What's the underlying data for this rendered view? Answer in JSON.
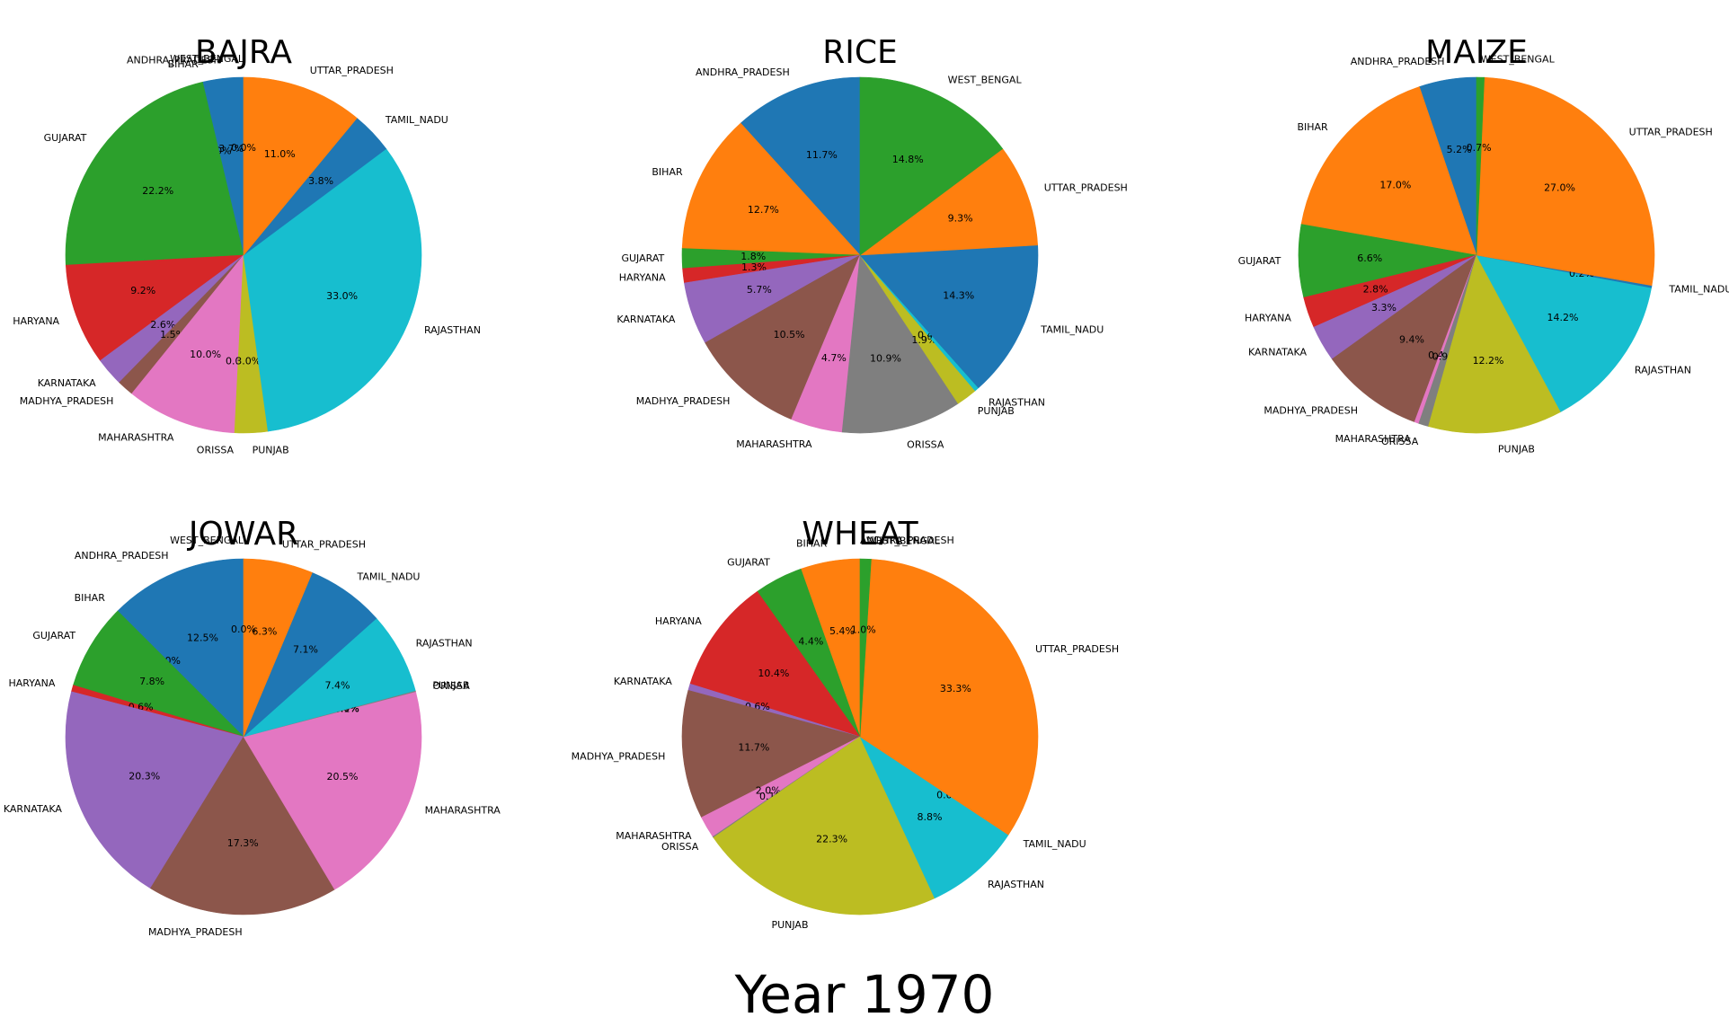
{
  "figure_title": "Year 1970",
  "colors": [
    "#1f77b4",
    "#ff7f0e",
    "#2ca02c",
    "#d62728",
    "#9467bd",
    "#8c564b",
    "#e377c2",
    "#7f7f7f",
    "#bcbd22",
    "#17becf"
  ],
  "chart_data": [
    {
      "type": "pie",
      "title": "BAJRA",
      "start_angle": 90,
      "direction": "counterclockwise",
      "categories": [
        "ANDHRA_PRADESH",
        "BIHAR",
        "GUJARAT",
        "HARYANA",
        "KARNATAKA",
        "MADHYA_PRADESH",
        "MAHARASHTRA",
        "ORISSA",
        "PUNJAB",
        "RAJASTHAN",
        "TAMIL_NADU",
        "UTTAR_PRADESH",
        "WEST_BENGAL"
      ],
      "values": [
        3.7,
        0.0,
        22.2,
        9.2,
        2.6,
        1.5,
        10.0,
        0.0,
        3.0,
        33.0,
        3.8,
        11.0,
        0.0
      ],
      "value_labels": [
        "3.7%",
        "0.0%",
        "22.2%",
        "9.2%",
        "2.6%",
        "1.5%",
        "10.0%",
        "0.0%",
        "3.0%",
        "33.0%",
        "3.8%",
        "11.0%",
        "0.0%"
      ]
    },
    {
      "type": "pie",
      "title": "RICE",
      "start_angle": 90,
      "direction": "counterclockwise",
      "categories": [
        "ANDHRA_PRADESH",
        "BIHAR",
        "GUJARAT",
        "HARYANA",
        "KARNATAKA",
        "MADHYA_PRADESH",
        "MAHARASHTRA",
        "ORISSA",
        "PUNJAB",
        "RAJASTHAN",
        "TAMIL_NADU",
        "UTTAR_PRADESH",
        "WEST_BENGAL"
      ],
      "values": [
        11.7,
        12.7,
        1.8,
        1.3,
        5.7,
        10.5,
        4.7,
        10.9,
        1.9,
        0.4,
        14.3,
        9.3,
        14.8
      ],
      "value_labels": [
        "11.7%",
        "12.7%",
        "1.8%",
        "1.3%",
        "5.7%",
        "10.5%",
        "4.7%",
        "10.9%",
        "1.9%",
        "0.4%",
        "14.3%",
        "9.3%",
        "14.8%"
      ]
    },
    {
      "type": "pie",
      "title": "MAIZE",
      "start_angle": 90,
      "direction": "counterclockwise",
      "categories": [
        "ANDHRA_PRADESH",
        "BIHAR",
        "GUJARAT",
        "HARYANA",
        "KARNATAKA",
        "MADHYA_PRADESH",
        "MAHARASHTRA",
        "ORISSA",
        "PUNJAB",
        "RAJASTHAN",
        "TAMIL_NADU",
        "UTTAR_PRADESH",
        "WEST_BENGAL"
      ],
      "values": [
        5.2,
        17.0,
        6.6,
        2.8,
        3.3,
        9.4,
        0.4,
        0.9,
        12.2,
        14.2,
        0.2,
        27.0,
        0.7
      ],
      "value_labels": [
        "5.2%",
        "17.0%",
        "6.6%",
        "2.8%",
        "3.3%",
        "9.4%",
        "0.4%",
        "0.9%",
        "12.2%",
        "14.2%",
        "0.2%",
        "27.0%",
        "0.7%"
      ]
    },
    {
      "type": "pie",
      "title": "JOWAR",
      "start_angle": 90,
      "direction": "counterclockwise",
      "categories": [
        "ANDHRA_PRADESH",
        "BIHAR",
        "GUJARAT",
        "HARYANA",
        "KARNATAKA",
        "MADHYA_PRADESH",
        "MAHARASHTRA",
        "ORISSA",
        "PUNJAB",
        "RAJASTHAN",
        "TAMIL_NADU",
        "UTTAR_PRADESH",
        "WEST_BENGAL"
      ],
      "values": [
        12.5,
        0.0,
        7.8,
        0.6,
        20.3,
        17.3,
        20.5,
        0.1,
        0.0,
        7.4,
        7.1,
        6.3,
        0.0
      ],
      "value_labels": [
        "12.5%",
        "0.0%",
        "7.8%",
        "0.6%",
        "20.3%",
        "17.3%",
        "20.5%",
        "0.1%",
        "0.0%",
        "7.4%",
        "7.1%",
        "6.3%",
        "0.0%"
      ]
    },
    {
      "type": "pie",
      "title": "WHEAT",
      "start_angle": 90,
      "direction": "counterclockwise",
      "categories": [
        "ANDHRA_PRADESH",
        "BIHAR",
        "GUJARAT",
        "HARYANA",
        "KARNATAKA",
        "MADHYA_PRADESH",
        "MAHARASHTRA",
        "ORISSA",
        "PUNJAB",
        "RAJASTHAN",
        "TAMIL_NADU",
        "UTTAR_PRADESH",
        "WEST_BENGAL"
      ],
      "values": [
        0.0,
        5.4,
        4.4,
        10.4,
        0.6,
        11.7,
        2.0,
        0.1,
        22.3,
        8.8,
        0.0,
        33.3,
        1.0
      ],
      "value_labels": [
        "0.0%",
        "5.4%",
        "4.4%",
        "10.4%",
        "0.6%",
        "11.7%",
        "2.0%",
        "0.1%",
        "22.3%",
        "8.8%",
        "0.0%",
        "33.3%",
        "1.0%"
      ]
    }
  ]
}
